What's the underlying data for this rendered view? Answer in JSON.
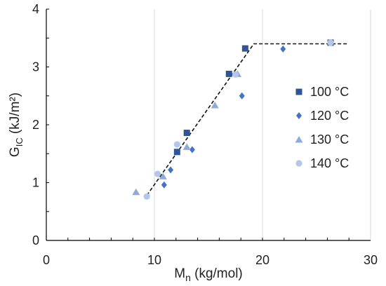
{
  "chart_data": {
    "type": "scatter",
    "xlabel": {
      "main": "M",
      "sub": "n",
      "rest": " (kg/mol)"
    },
    "ylabel": {
      "main": "G",
      "sub": "IC",
      "rest": " (kJ/m²)"
    },
    "xlim": [
      0,
      30
    ],
    "ylim": [
      0,
      4
    ],
    "x_ticks": [
      0,
      10,
      20,
      30
    ],
    "y_ticks": [
      0,
      1,
      2,
      3,
      4
    ],
    "x_tick_labels": [
      "0",
      "10",
      "20",
      "30"
    ],
    "y_tick_labels": [
      "0",
      "1",
      "2",
      "3",
      "4"
    ],
    "grid": "vertical",
    "legend_position": "right",
    "series": [
      {
        "name": "100 °C",
        "marker": "square",
        "color": "#2F5597",
        "points": [
          [
            12.1,
            1.53
          ],
          [
            13.0,
            1.86
          ],
          [
            16.9,
            2.88
          ],
          [
            18.4,
            3.32
          ],
          [
            26.3,
            3.42
          ]
        ]
      },
      {
        "name": "120 °C",
        "marker": "diamond",
        "color": "#4472C4",
        "points": [
          [
            10.9,
            0.96
          ],
          [
            11.5,
            1.22
          ],
          [
            13.5,
            1.57
          ],
          [
            18.1,
            2.5
          ],
          [
            21.9,
            3.31
          ]
        ]
      },
      {
        "name": "130 °C",
        "marker": "triangle",
        "color": "#8FAADC",
        "points": [
          [
            8.3,
            0.84
          ],
          [
            10.8,
            1.11
          ],
          [
            13.0,
            1.62
          ],
          [
            15.6,
            2.34
          ],
          [
            17.7,
            2.88
          ]
        ]
      },
      {
        "name": "140 °C",
        "marker": "circle",
        "color": "#B4C7E7",
        "points": [
          [
            9.3,
            0.76
          ],
          [
            10.3,
            1.15
          ],
          [
            12.1,
            1.66
          ],
          [
            17.5,
            2.87
          ],
          [
            26.3,
            3.42
          ]
        ]
      }
    ],
    "trendline": {
      "style": "dashed",
      "color": "#111111",
      "points": [
        [
          9.3,
          0.78
        ],
        [
          19.2,
          3.4
        ],
        [
          28.0,
          3.4
        ]
      ]
    }
  }
}
